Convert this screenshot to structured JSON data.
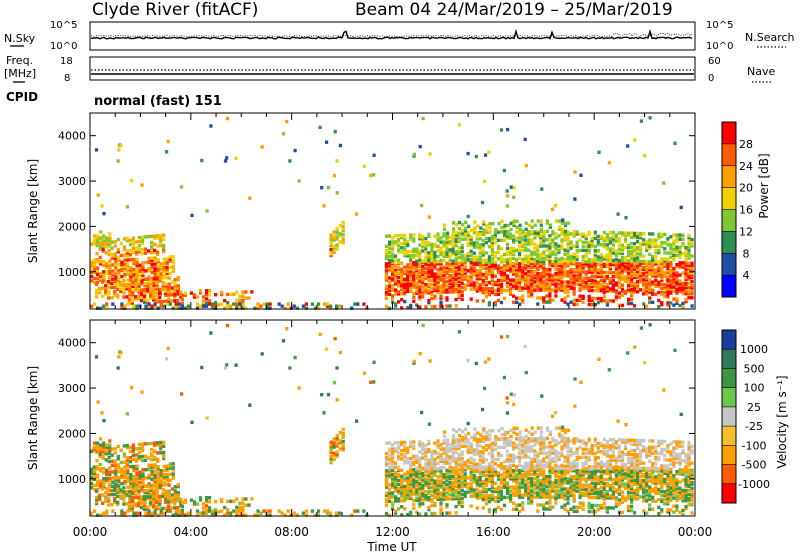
{
  "header": {
    "station": "Clyde River (fitACF)",
    "beam_date": "Beam 04  24/Mar/2019 – 25/Mar/2019"
  },
  "nsky_panel": {
    "left_label": "N.Sky",
    "right_label": "N.Search",
    "left_ticks": [
      "10^5",
      "10^0"
    ],
    "right_ticks": [
      "10^5",
      "10^0"
    ]
  },
  "freq_panel": {
    "left_label_top": "Freq.",
    "left_label_unit": "[MHz]",
    "right_label": "Nave",
    "left_ticks": [
      "18",
      "8"
    ],
    "right_ticks": [
      "60",
      "0"
    ]
  },
  "cpid": {
    "label": "CPID",
    "value": "normal (fast) 151"
  },
  "chart_data": [
    {
      "type": "heatmap",
      "name": "power",
      "ylabel": "Slant Range [km]",
      "yticks": [
        1000,
        2000,
        3000,
        4000
      ],
      "ylim": [
        180,
        4500
      ],
      "xlim": [
        0,
        24
      ],
      "colorbar_label": "Power [dB]",
      "colorbar_ticks": [
        "28",
        "24",
        "20",
        "16",
        "12",
        "8",
        "4"
      ],
      "colorbar_colors": [
        "#ff0000",
        "#ff5a00",
        "#ff9f00",
        "#f0d000",
        "#7dc830",
        "#2f8f50",
        "#1e4ea8",
        "#0000ff"
      ]
    },
    {
      "type": "heatmap",
      "name": "velocity",
      "ylabel": "Slant Range [km]",
      "xlabel": "Time UT",
      "yticks": [
        1000,
        2000,
        3000,
        4000
      ],
      "ylim": [
        180,
        4500
      ],
      "xlim": [
        0,
        24
      ],
      "xtick_labels": [
        "00:00",
        "04:00",
        "08:00",
        "12:00",
        "16:00",
        "20:00",
        "00:00"
      ],
      "colorbar_label": "Velocity [m s⁻¹]",
      "colorbar_ticks": [
        "1000",
        "500",
        "100",
        "25",
        "-25",
        "-100",
        "-500",
        "-1000"
      ],
      "colorbar_colors": [
        "#1e3c9c",
        "#2e7a58",
        "#3d9645",
        "#6cc64a",
        "#c6c6c6",
        "#f5c02c",
        "#ff9f00",
        "#ff5a00",
        "#ff0000"
      ]
    }
  ]
}
